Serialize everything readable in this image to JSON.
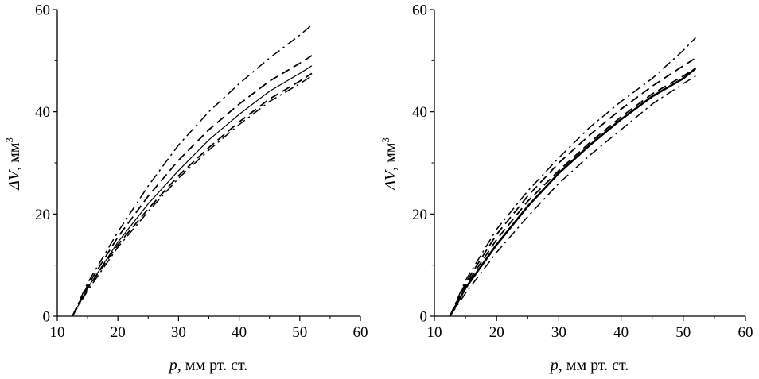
{
  "chart_data": [
    {
      "type": "line",
      "xlabel_var": "p",
      "xlabel_unit": ", мм рт. ст.",
      "ylabel_var": "ΔV",
      "ylabel_unit": ", мм",
      "ylabel_sup": "3",
      "xlim": [
        10,
        60
      ],
      "ylim": [
        0,
        60
      ],
      "xticks": [
        "10",
        "20",
        "30",
        "40",
        "50",
        "60"
      ],
      "yticks": [
        "0",
        "20",
        "40",
        "60"
      ],
      "grid": false,
      "series": [
        {
          "style": "solid-thin",
          "x": [
            12.5,
            15,
            20,
            25,
            30,
            35,
            40,
            45,
            50,
            52
          ],
          "y": [
            0,
            5.5,
            14.5,
            22,
            28.5,
            34.5,
            39.5,
            44,
            47.5,
            49
          ]
        },
        {
          "style": "dashed",
          "x": [
            12.5,
            15,
            20,
            25,
            30,
            35,
            40,
            45,
            50,
            52
          ],
          "y": [
            0,
            6,
            15.5,
            23.5,
            30.5,
            36.5,
            41.5,
            46,
            49.5,
            51
          ]
        },
        {
          "style": "dashed",
          "x": [
            12.5,
            15,
            20,
            25,
            30,
            35,
            40,
            45,
            50,
            52
          ],
          "y": [
            0,
            5.5,
            14,
            21,
            27.5,
            33,
            38,
            42.5,
            46,
            47.5
          ]
        },
        {
          "style": "dashdot",
          "x": [
            12.5,
            15,
            20,
            25,
            30,
            35,
            40,
            45,
            50,
            52
          ],
          "y": [
            0,
            6.5,
            16.5,
            25.5,
            33.5,
            40,
            45.5,
            50.5,
            55,
            57
          ]
        },
        {
          "style": "dashdot",
          "x": [
            12.5,
            15,
            20,
            25,
            30,
            35,
            40,
            45,
            50,
            52
          ],
          "y": [
            0,
            5,
            13.5,
            20.5,
            27,
            32.5,
            37.5,
            42,
            45.5,
            47
          ]
        }
      ]
    },
    {
      "type": "line",
      "xlabel_var": "p",
      "xlabel_unit": ", мм рт. ст.",
      "ylabel_var": "ΔV",
      "ylabel_unit": ", мм",
      "ylabel_sup": "3",
      "xlim": [
        10,
        60
      ],
      "ylim": [
        0,
        60
      ],
      "xticks": [
        "10",
        "20",
        "30",
        "40",
        "50",
        "60"
      ],
      "yticks": [
        "0",
        "20",
        "40",
        "60"
      ],
      "grid": false,
      "series": [
        {
          "style": "solid-thick",
          "x": [
            12.5,
            15,
            20,
            25,
            30,
            35,
            40,
            45,
            50,
            52
          ],
          "y": [
            0,
            5.5,
            14,
            21.5,
            28,
            33.5,
            38.5,
            43,
            46.5,
            48.5
          ]
        },
        {
          "style": "dashed",
          "x": [
            12.5,
            15,
            20,
            25,
            30,
            35,
            40,
            45,
            50,
            52
          ],
          "y": [
            0,
            6.5,
            16,
            23.5,
            30,
            35.5,
            40.5,
            45,
            49,
            50.5
          ]
        },
        {
          "style": "dashed",
          "x": [
            12.5,
            15,
            20,
            25,
            30,
            35,
            40,
            45,
            50,
            52
          ],
          "y": [
            0,
            6,
            15,
            22.5,
            28.5,
            34,
            39,
            43.5,
            47,
            48.5
          ]
        },
        {
          "style": "dashdot",
          "x": [
            12.5,
            15,
            20,
            25,
            30,
            35,
            40,
            45,
            50,
            52
          ],
          "y": [
            0,
            7,
            17,
            24.5,
            31,
            37,
            42,
            46.5,
            52,
            54.5
          ]
        },
        {
          "style": "dashdot",
          "x": [
            12.5,
            15,
            20,
            25,
            30,
            35,
            40,
            45,
            50,
            52
          ],
          "y": [
            0,
            4.5,
            12.5,
            19.5,
            26,
            31.5,
            36.5,
            41.5,
            45.5,
            47
          ]
        }
      ]
    }
  ]
}
